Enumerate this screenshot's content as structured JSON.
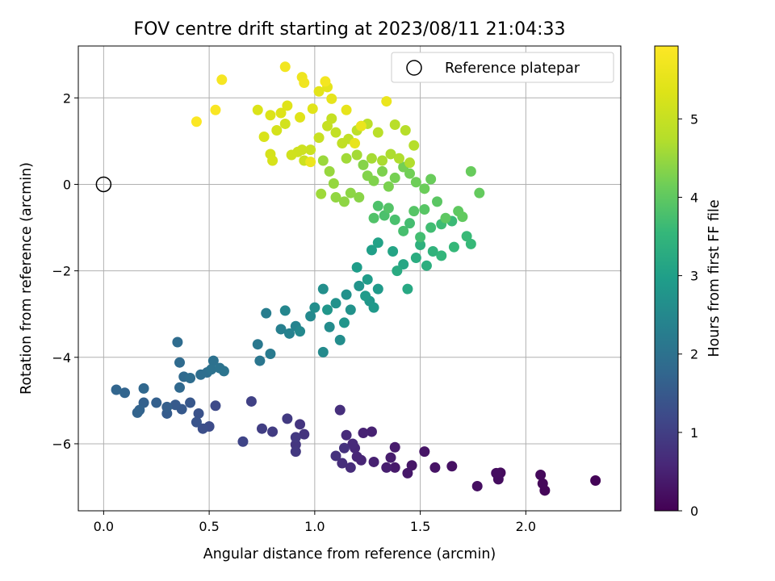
{
  "chart_data": {
    "type": "scatter",
    "title": "FOV centre drift starting at 2023/08/11 21:04:33",
    "xlabel": "Angular distance from reference (arcmin)",
    "ylabel": "Rotation from reference (arcmin)",
    "xlim": [
      -0.12,
      2.45
    ],
    "ylim": [
      -7.55,
      3.2
    ],
    "xticks": [
      0.0,
      0.5,
      1.0,
      1.5,
      2.0
    ],
    "xtick_labels": [
      "0.0",
      "0.5",
      "1.0",
      "1.5",
      "2.0"
    ],
    "yticks": [
      -6,
      -4,
      -2,
      0,
      2
    ],
    "ytick_labels": [
      "−6",
      "−4",
      "−2",
      "0",
      "2"
    ],
    "grid": true,
    "legend": {
      "placement": "top-right",
      "entries": [
        "Reference platepar"
      ]
    },
    "reference_point": {
      "x": 0.0,
      "y": 0.0,
      "label": "Reference platepar"
    },
    "colorbar": {
      "label": "Hours from first FF file",
      "range": [
        0,
        5.93
      ],
      "ticks": [
        0,
        1,
        2,
        3,
        4,
        5
      ],
      "tick_labels": [
        "0",
        "1",
        "2",
        "3",
        "4",
        "5"
      ],
      "colormap": "viridis"
    },
    "series": [
      {
        "color_by": "hours",
        "points": [
          [
            2.33,
            -6.85,
            0.05
          ],
          [
            2.09,
            -7.08,
            0.08
          ],
          [
            2.08,
            -6.92,
            0.1
          ],
          [
            2.07,
            -6.72,
            0.12
          ],
          [
            1.88,
            -6.67,
            0.15
          ],
          [
            1.87,
            -6.82,
            0.18
          ],
          [
            1.86,
            -6.68,
            0.2
          ],
          [
            1.77,
            -6.98,
            0.22
          ],
          [
            1.65,
            -6.52,
            0.25
          ],
          [
            1.57,
            -6.55,
            0.28
          ],
          [
            1.52,
            -6.18,
            0.3
          ],
          [
            1.46,
            -6.5,
            0.32
          ],
          [
            1.44,
            -6.68,
            0.35
          ],
          [
            1.38,
            -6.55,
            0.38
          ],
          [
            1.38,
            -6.08,
            0.4
          ],
          [
            1.36,
            -6.32,
            0.42
          ],
          [
            1.34,
            -6.55,
            0.45
          ],
          [
            1.28,
            -6.42,
            0.48
          ],
          [
            1.27,
            -5.72,
            0.5
          ],
          [
            1.23,
            -5.75,
            0.52
          ],
          [
            1.22,
            -6.38,
            0.55
          ],
          [
            1.2,
            -6.3,
            0.58
          ],
          [
            1.19,
            -6.1,
            0.6
          ],
          [
            1.18,
            -6.0,
            0.62
          ],
          [
            1.15,
            -5.8,
            0.65
          ],
          [
            1.17,
            -6.55,
            0.68
          ],
          [
            1.13,
            -6.45,
            0.7
          ],
          [
            1.12,
            -5.22,
            0.72
          ],
          [
            1.1,
            -6.28,
            0.75
          ],
          [
            1.14,
            -6.1,
            0.78
          ],
          [
            0.95,
            -5.78,
            0.8
          ],
          [
            0.93,
            -5.55,
            0.82
          ],
          [
            0.91,
            -6.02,
            0.85
          ],
          [
            0.91,
            -6.18,
            0.88
          ],
          [
            0.91,
            -5.85,
            0.9
          ],
          [
            0.87,
            -5.42,
            0.92
          ],
          [
            0.8,
            -5.72,
            0.95
          ],
          [
            0.75,
            -5.65,
            0.98
          ],
          [
            0.7,
            -5.02,
            1.05
          ],
          [
            0.66,
            -5.95,
            1.1
          ],
          [
            0.53,
            -5.12,
            1.2
          ],
          [
            0.5,
            -5.6,
            1.25
          ],
          [
            0.47,
            -5.65,
            1.3
          ],
          [
            0.45,
            -5.3,
            1.35
          ],
          [
            0.44,
            -5.5,
            1.4
          ],
          [
            0.41,
            -5.05,
            1.45
          ],
          [
            0.37,
            -5.2,
            1.5
          ],
          [
            0.34,
            -5.1,
            1.52
          ],
          [
            0.3,
            -5.3,
            1.55
          ],
          [
            0.3,
            -5.15,
            1.6
          ],
          [
            0.25,
            -5.05,
            1.62
          ],
          [
            0.19,
            -5.05,
            1.65
          ],
          [
            0.17,
            -5.22,
            1.68
          ],
          [
            0.16,
            -5.28,
            1.7
          ],
          [
            0.1,
            -4.82,
            1.72
          ],
          [
            0.06,
            -4.75,
            1.75
          ],
          [
            0.19,
            -4.72,
            1.78
          ],
          [
            0.36,
            -4.7,
            1.8
          ],
          [
            0.38,
            -4.45,
            1.82
          ],
          [
            0.36,
            -4.12,
            1.85
          ],
          [
            0.35,
            -3.65,
            1.88
          ],
          [
            0.41,
            -4.48,
            1.9
          ],
          [
            0.46,
            -4.4,
            1.92
          ],
          [
            0.49,
            -4.35,
            1.95
          ],
          [
            0.52,
            -4.08,
            1.98
          ],
          [
            0.51,
            -4.28,
            2.0
          ],
          [
            0.55,
            -4.25,
            2.02
          ],
          [
            0.57,
            -4.32,
            2.05
          ],
          [
            0.74,
            -4.08,
            2.1
          ],
          [
            0.73,
            -3.7,
            2.15
          ],
          [
            0.79,
            -3.92,
            2.2
          ],
          [
            0.77,
            -2.98,
            2.25
          ],
          [
            0.84,
            -3.35,
            2.3
          ],
          [
            0.88,
            -3.45,
            2.35
          ],
          [
            0.91,
            -3.28,
            2.4
          ],
          [
            0.86,
            -2.92,
            2.45
          ],
          [
            0.93,
            -3.4,
            2.5
          ],
          [
            0.98,
            -3.05,
            2.52
          ],
          [
            1.04,
            -3.88,
            2.55
          ],
          [
            1.07,
            -3.3,
            2.58
          ],
          [
            1.12,
            -3.6,
            2.6
          ],
          [
            1.0,
            -2.85,
            2.62
          ],
          [
            1.04,
            -2.42,
            2.65
          ],
          [
            1.1,
            -2.75,
            2.68
          ],
          [
            1.15,
            -2.55,
            2.7
          ],
          [
            1.17,
            -2.9,
            2.72
          ],
          [
            1.21,
            -2.35,
            2.75
          ],
          [
            1.14,
            -3.2,
            2.78
          ],
          [
            1.06,
            -2.9,
            2.8
          ],
          [
            1.26,
            -2.7,
            2.82
          ],
          [
            1.28,
            -2.85,
            2.85
          ],
          [
            1.3,
            -2.42,
            2.88
          ],
          [
            1.24,
            -2.58,
            2.9
          ],
          [
            1.25,
            -2.2,
            2.92
          ],
          [
            1.2,
            -1.92,
            2.95
          ],
          [
            1.27,
            -1.52,
            3.0
          ],
          [
            1.3,
            -1.35,
            3.05
          ],
          [
            1.37,
            -1.55,
            3.1
          ],
          [
            1.42,
            -1.85,
            3.15
          ],
          [
            1.44,
            -2.42,
            3.2
          ],
          [
            1.39,
            -2.0,
            3.25
          ],
          [
            1.48,
            -1.7,
            3.3
          ],
          [
            1.53,
            -1.88,
            3.35
          ],
          [
            1.5,
            -1.4,
            3.4
          ],
          [
            1.56,
            -1.55,
            3.45
          ],
          [
            1.6,
            -1.65,
            3.5
          ],
          [
            1.66,
            -1.45,
            3.55
          ],
          [
            1.74,
            -1.38,
            3.58
          ],
          [
            1.72,
            -1.2,
            3.6
          ],
          [
            1.65,
            -0.85,
            3.62
          ],
          [
            1.6,
            -0.92,
            3.65
          ],
          [
            1.55,
            -1.0,
            3.68
          ],
          [
            1.5,
            -1.22,
            3.7
          ],
          [
            1.45,
            -0.9,
            3.72
          ],
          [
            1.42,
            -1.08,
            3.75
          ],
          [
            1.38,
            -0.82,
            3.78
          ],
          [
            1.33,
            -0.72,
            3.8
          ],
          [
            1.3,
            -0.5,
            3.82
          ],
          [
            1.28,
            -0.78,
            3.85
          ],
          [
            1.35,
            -0.55,
            3.88
          ],
          [
            1.47,
            -0.62,
            3.9
          ],
          [
            1.52,
            -0.58,
            3.92
          ],
          [
            1.58,
            -0.4,
            3.95
          ],
          [
            1.62,
            -0.78,
            3.98
          ],
          [
            1.68,
            -0.62,
            4.0
          ],
          [
            1.7,
            -0.75,
            4.02
          ],
          [
            1.78,
            -0.2,
            4.05
          ],
          [
            1.74,
            0.3,
            4.08
          ],
          [
            1.55,
            0.12,
            4.1
          ],
          [
            1.52,
            -0.1,
            4.12
          ],
          [
            1.48,
            0.05,
            4.15
          ],
          [
            1.45,
            0.25,
            4.18
          ],
          [
            1.42,
            0.4,
            4.2
          ],
          [
            1.38,
            0.15,
            4.22
          ],
          [
            1.35,
            -0.05,
            4.25
          ],
          [
            1.32,
            0.3,
            4.28
          ],
          [
            1.28,
            0.08,
            4.3
          ],
          [
            1.25,
            0.2,
            4.32
          ],
          [
            1.23,
            0.45,
            4.35
          ],
          [
            1.21,
            -0.3,
            4.38
          ],
          [
            1.17,
            -0.2,
            4.4
          ],
          [
            1.14,
            -0.4,
            4.42
          ],
          [
            1.1,
            -0.3,
            4.45
          ],
          [
            1.09,
            0.02,
            4.48
          ],
          [
            1.07,
            0.3,
            4.5
          ],
          [
            1.04,
            0.55,
            4.52
          ],
          [
            1.03,
            -0.22,
            4.55
          ],
          [
            1.15,
            0.6,
            4.58
          ],
          [
            1.2,
            0.68,
            4.6
          ],
          [
            1.27,
            0.6,
            4.62
          ],
          [
            1.32,
            0.55,
            4.65
          ],
          [
            1.36,
            0.7,
            4.68
          ],
          [
            1.4,
            0.6,
            4.7
          ],
          [
            1.45,
            0.5,
            4.72
          ],
          [
            1.47,
            0.9,
            4.75
          ],
          [
            1.43,
            1.25,
            4.78
          ],
          [
            1.38,
            1.38,
            4.8
          ],
          [
            1.3,
            1.2,
            4.82
          ],
          [
            1.25,
            1.4,
            4.85
          ],
          [
            1.2,
            1.25,
            4.88
          ],
          [
            1.16,
            1.05,
            4.9
          ],
          [
            1.13,
            0.95,
            4.92
          ],
          [
            1.1,
            1.2,
            4.95
          ],
          [
            1.08,
            1.52,
            4.98
          ],
          [
            1.06,
            1.35,
            5.0
          ],
          [
            1.02,
            1.08,
            5.02
          ],
          [
            0.98,
            0.8,
            5.05
          ],
          [
            0.95,
            0.55,
            5.08
          ],
          [
            0.94,
            0.8,
            5.1
          ],
          [
            0.92,
            0.75,
            5.12
          ],
          [
            0.89,
            0.68,
            5.15
          ],
          [
            0.86,
            1.4,
            5.18
          ],
          [
            0.82,
            1.25,
            5.2
          ],
          [
            0.79,
            0.7,
            5.22
          ],
          [
            0.8,
            0.55,
            5.25
          ],
          [
            0.76,
            1.1,
            5.28
          ],
          [
            0.73,
            1.72,
            5.3
          ],
          [
            0.79,
            1.6,
            5.32
          ],
          [
            0.84,
            1.65,
            5.35
          ],
          [
            0.87,
            1.82,
            5.38
          ],
          [
            0.93,
            1.55,
            5.4
          ],
          [
            0.99,
            1.75,
            5.42
          ],
          [
            1.02,
            2.15,
            5.45
          ],
          [
            1.06,
            2.25,
            5.48
          ],
          [
            1.08,
            1.98,
            5.5
          ],
          [
            1.15,
            1.72,
            5.52
          ],
          [
            1.19,
            0.95,
            5.55
          ],
          [
            1.22,
            1.35,
            5.58
          ],
          [
            1.34,
            1.92,
            5.6
          ],
          [
            0.98,
            0.52,
            5.62
          ],
          [
            0.94,
            2.48,
            5.65
          ],
          [
            0.95,
            2.35,
            5.68
          ],
          [
            0.86,
            2.72,
            5.72
          ],
          [
            1.05,
            2.38,
            5.75
          ],
          [
            0.56,
            2.42,
            5.8
          ],
          [
            0.53,
            1.72,
            5.85
          ],
          [
            0.44,
            1.45,
            5.9
          ]
        ]
      }
    ]
  }
}
